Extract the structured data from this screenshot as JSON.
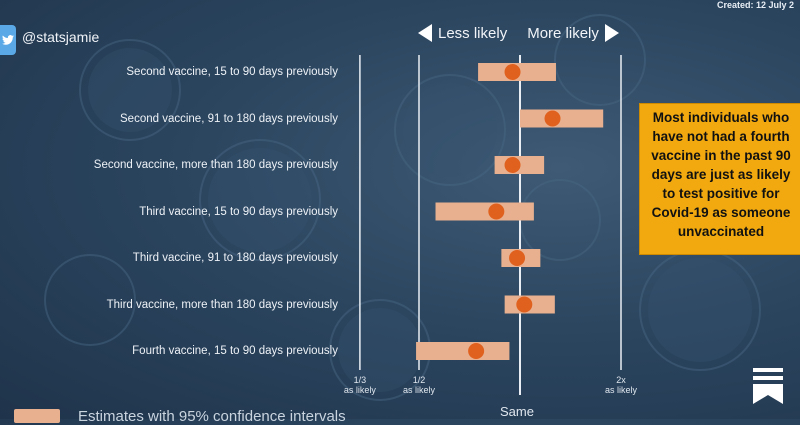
{
  "header": {
    "created": "Created: 12 July 2",
    "handle": "@statsjamie",
    "less_likely": "Less likely",
    "more_likely": "More likely"
  },
  "annotation": {
    "lines": [
      "Most individuals who",
      "have not had a fourth",
      "vaccine in the past 90",
      "days are just as likely",
      "to test positive for",
      "Covid-19 as someone",
      "unvaccinated"
    ]
  },
  "legend": {
    "label": "Estimates with 95% confidence intervals"
  },
  "colors": {
    "background": "#2c4660",
    "ci_bar": "#e8b08f",
    "point": "#e0601e",
    "annotation_box": "#f1a90f",
    "twitter": "#5aa9e6"
  },
  "icons": {
    "twitter": "twitter-bird-icon",
    "bookmark": "bookmark-icon",
    "arrow_left": "triangle-left-icon",
    "arrow_right": "triangle-right-icon"
  },
  "chart_data": {
    "type": "scatter",
    "orientation": "horizontal-forest-plot",
    "x_scale": "log",
    "categories": [
      "Second vaccine, 15 to 90 days previously",
      "Second vaccine, 91 to 180 days previously",
      "Second vaccine, more than 180 days previously",
      "Third vaccine, 15 to 90 days previously",
      "Third vaccine, 91 to 180 days previously",
      "Third vaccine, more than 180 days previously",
      "Fourth vaccine, 15 to 90 days previously"
    ],
    "estimate": [
      0.95,
      1.25,
      0.95,
      0.85,
      0.98,
      1.03,
      0.74
    ],
    "ci_low": [
      0.75,
      1.0,
      0.84,
      0.56,
      0.88,
      0.9,
      0.49
    ],
    "ci_high": [
      1.28,
      1.77,
      1.18,
      1.1,
      1.15,
      1.27,
      0.93
    ],
    "xticks": [
      {
        "value": 0.3333,
        "label": [
          "1/3",
          "as likely"
        ]
      },
      {
        "value": 0.5,
        "label": [
          "1/2",
          "as likely"
        ]
      },
      {
        "value": 1,
        "label": [
          "Same"
        ]
      },
      {
        "value": 2,
        "label": [
          "2x",
          "as likely"
        ]
      }
    ],
    "grid": true,
    "legend_position": "bottom-left"
  }
}
